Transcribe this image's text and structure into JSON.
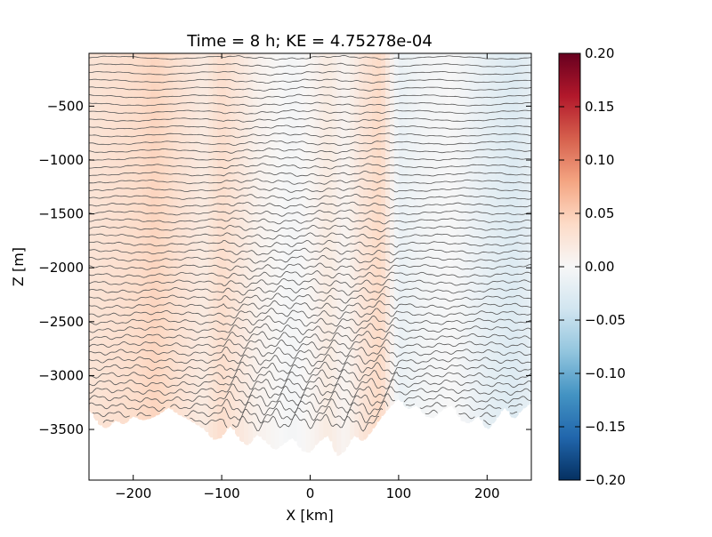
{
  "chart_data": {
    "type": "heatmap",
    "title": "Time = 8 h; KE = 4.75278e-04",
    "xlabel": "X [km]",
    "ylabel": "Z [m]",
    "xlim": [
      -250,
      250
    ],
    "ylim": [
      -3970,
      -10
    ],
    "x_ticks": [
      -200,
      -100,
      0,
      100,
      200
    ],
    "x_tick_labels": [
      "−200",
      "−100",
      "0",
      "100",
      "200"
    ],
    "y_ticks": [
      -500,
      -1000,
      -1500,
      -2000,
      -2500,
      -3000,
      -3500
    ],
    "y_tick_labels": [
      "−500",
      "−1000",
      "−1500",
      "−2000",
      "−2500",
      "−3000",
      "−3500"
    ],
    "colorbar": {
      "min": -0.2,
      "max": 0.2,
      "cmap": "RdBu_r",
      "ticks": [
        0.2,
        0.15,
        0.1,
        0.05,
        0.0,
        -0.05,
        -0.1,
        -0.15,
        -0.2
      ],
      "tick_labels": [
        "0.20",
        "0.15",
        "0.10",
        "0.05",
        "0.00",
        "−0.05",
        "−0.10",
        "−0.15",
        "−0.20"
      ]
    },
    "field_profile": {
      "x": [
        -250,
        -200,
        -175,
        -150,
        -120,
        -100,
        -60,
        -20,
        0,
        20,
        40,
        60,
        80,
        100,
        130,
        160,
        200,
        230,
        250
      ],
      "value": [
        0.03,
        0.04,
        0.05,
        0.035,
        0.02,
        0.04,
        0.01,
        -0.005,
        0.005,
        0.02,
        0.005,
        0.03,
        0.045,
        -0.015,
        -0.005,
        0.0,
        -0.02,
        -0.03,
        -0.02
      ]
    },
    "bottom_depth": {
      "x": [
        -250,
        -240,
        -230,
        -220,
        -210,
        -200,
        -190,
        -180,
        -170,
        -160,
        -150,
        -140,
        -130,
        -120,
        -110,
        -100,
        -95,
        -90,
        -80,
        -70,
        -60,
        -50,
        -40,
        -30,
        -20,
        -10,
        0,
        10,
        20,
        30,
        40,
        50,
        60,
        70,
        80,
        90,
        100,
        110,
        120,
        130,
        140,
        150,
        160,
        170,
        180,
        190,
        200,
        210,
        220,
        230,
        240,
        250
      ],
      "z": [
        -3320,
        -3450,
        -3500,
        -3420,
        -3460,
        -3380,
        -3420,
        -3400,
        -3360,
        -3300,
        -3360,
        -3400,
        -3450,
        -3500,
        -3600,
        -3580,
        -3520,
        -3470,
        -3600,
        -3660,
        -3550,
        -3620,
        -3700,
        -3640,
        -3580,
        -3700,
        -3720,
        -3620,
        -3560,
        -3760,
        -3700,
        -3560,
        -3620,
        -3520,
        -3400,
        -3300,
        -3220,
        -3320,
        -3280,
        -3380,
        -3400,
        -3320,
        -3280,
        -3420,
        -3450,
        -3380,
        -3520,
        -3420,
        -3300,
        -3420,
        -3320,
        -3260
      ]
    },
    "isopycnals": {
      "count": 48,
      "top_z": -50,
      "spacing_z": 72,
      "color": "#555555"
    },
    "grid": false,
    "legend": "none"
  }
}
